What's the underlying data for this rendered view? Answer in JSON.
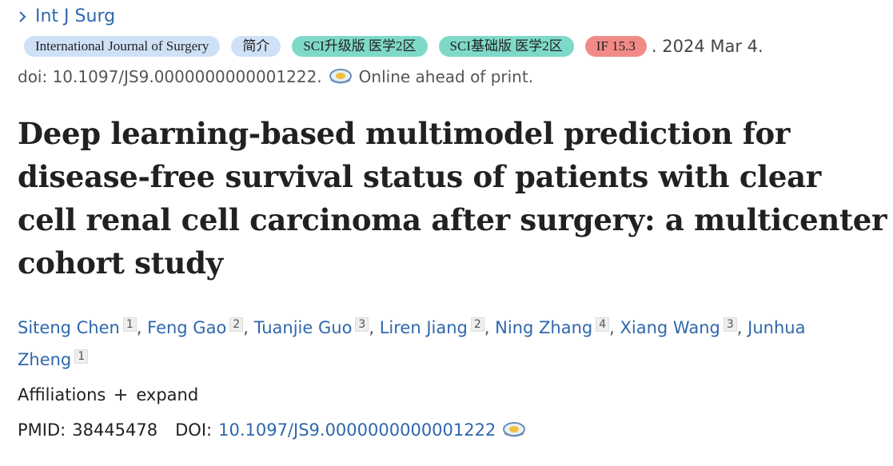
{
  "journal": "Int J Surg",
  "badges": [
    "International Journal of Surgery",
    "简介",
    "SCI升级版 医学2区",
    "SCI基础版 医学2区",
    "IF 15.3"
  ],
  "date": ". 2024 Mar 4.",
  "doi_line": {
    "doi": "doi: 10.1097/JS9.0000000000001222.",
    "status": "Online ahead of print."
  },
  "title": "Deep learning-based multimodel prediction for disease-free survival status of patients with clear cell renal cell carcinoma after surgery: a multicenter cohort study",
  "authors": [
    {
      "name": "Siteng Chen",
      "aff": "1"
    },
    {
      "name": "Feng Gao",
      "aff": "2"
    },
    {
      "name": "Tuanjie Guo",
      "aff": "3"
    },
    {
      "name": "Liren Jiang",
      "aff": "2"
    },
    {
      "name": "Ning Zhang",
      "aff": "4"
    },
    {
      "name": "Xiang Wang",
      "aff": "3"
    },
    {
      "name": "Junhua Zheng",
      "aff": "1"
    }
  ],
  "author_separator": ",",
  "affiliations": {
    "label": "Affiliations",
    "toggle": "expand"
  },
  "ids": {
    "pmid_label": "PMID:",
    "pmid": "38445478",
    "doi_label": "DOI:",
    "doi": "10.1097/JS9.0000000000001222"
  }
}
